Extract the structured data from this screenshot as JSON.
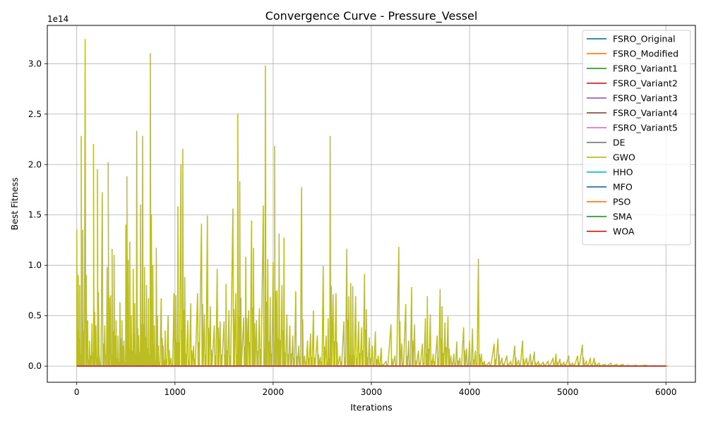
{
  "chart_data": {
    "type": "line",
    "title": "Convergence Curve - Pressure_Vessel",
    "xlabel": "Iterations",
    "ylabel": "Best Fitness",
    "y_offset_label": "1e14",
    "xlim": [
      -300,
      6300
    ],
    "ylim": [
      -16000000000000.0,
      338000000000000.0
    ],
    "x_ticks": [
      0,
      1000,
      2000,
      3000,
      4000,
      5000,
      6000
    ],
    "x_tick_labels": [
      "0",
      "1000",
      "2000",
      "3000",
      "4000",
      "5000",
      "6000"
    ],
    "y_ticks": [
      0,
      50000000000000.0,
      100000000000000.0,
      150000000000000.0,
      200000000000000.0,
      250000000000000.0,
      300000000000000.0
    ],
    "y_tick_labels": [
      "0.0",
      "0.5",
      "1.0",
      "1.5",
      "2.0",
      "2.5",
      "3.0"
    ],
    "grid": true,
    "legend_position": "top-right",
    "iterations": 6000,
    "series": [
      {
        "name": "FSRO_Original",
        "color": "#1f77b4",
        "value": 0
      },
      {
        "name": "FSRO_Modified",
        "color": "#ff7f0e",
        "value": 0
      },
      {
        "name": "FSRO_Variant1",
        "color": "#2ca02c",
        "value": 0
      },
      {
        "name": "FSRO_Variant2",
        "color": "#d62728",
        "value": 0
      },
      {
        "name": "FSRO_Variant3",
        "color": "#9467bd",
        "value": 0
      },
      {
        "name": "FSRO_Variant4",
        "color": "#8c564b",
        "value": 0
      },
      {
        "name": "FSRO_Variant5",
        "color": "#e377c2",
        "value": 0
      },
      {
        "name": "DE",
        "color": "#7f7f7f",
        "value": 0
      },
      {
        "name": "GWO",
        "color": "#bcbd22",
        "peaks": [
          [
            0,
            135000000000000.0
          ],
          [
            15,
            90000000000000.0
          ],
          [
            30,
            80000000000000.0
          ],
          [
            45,
            228000000000000.0
          ],
          [
            60,
            135000000000000.0
          ],
          [
            85,
            324000000000000.0
          ],
          [
            110,
            45000000000000.0
          ],
          [
            130,
            25000000000000.0
          ],
          [
            155,
            42000000000000.0
          ],
          [
            170,
            220000000000000.0
          ],
          [
            195,
            40000000000000.0
          ],
          [
            210,
            195000000000000.0
          ],
          [
            230,
            10000000000000.0
          ],
          [
            260,
            172000000000000.0
          ],
          [
            285,
            40000000000000.0
          ],
          [
            310,
            98000000000000.0
          ],
          [
            320,
            202000000000000.0
          ],
          [
            345,
            70000000000000.0
          ],
          [
            360,
            116000000000000.0
          ],
          [
            380,
            110000000000000.0
          ],
          [
            400,
            45000000000000.0
          ],
          [
            420,
            30000000000000.0
          ],
          [
            440,
            63000000000000.0
          ],
          [
            460,
            45000000000000.0
          ],
          [
            480,
            25000000000000.0
          ],
          [
            500,
            140000000000000.0
          ],
          [
            510,
            188000000000000.0
          ],
          [
            525,
            105000000000000.0
          ],
          [
            540,
            123000000000000.0
          ],
          [
            555,
            50000000000000.0
          ],
          [
            575,
            96000000000000.0
          ],
          [
            590,
            62000000000000.0
          ],
          [
            610,
            233000000000000.0
          ],
          [
            630,
            30000000000000.0
          ],
          [
            650,
            160000000000000.0
          ],
          [
            670,
            228000000000000.0
          ],
          [
            690,
            98000000000000.0
          ],
          [
            710,
            80000000000000.0
          ],
          [
            730,
            67000000000000.0
          ],
          [
            750,
            310000000000000.0
          ],
          [
            760,
            150000000000000.0
          ],
          [
            775,
            100000000000000.0
          ],
          [
            790,
            40000000000000.0
          ],
          [
            810,
            117000000000000.0
          ],
          [
            830,
            20000000000000.0
          ],
          [
            860,
            67000000000000.0
          ],
          [
            880,
            20000000000000.0
          ],
          [
            900,
            35000000000000.0
          ],
          [
            930,
            50000000000000.0
          ],
          [
            960,
            8000000000000.0
          ],
          [
            990,
            72000000000000.0
          ],
          [
            1010,
            70000000000000.0
          ],
          [
            1030,
            158000000000000.0
          ],
          [
            1060,
            200000000000000.0
          ],
          [
            1080,
            215000000000000.0
          ],
          [
            1100,
            88000000000000.0
          ],
          [
            1130,
            45000000000000.0
          ],
          [
            1160,
            62000000000000.0
          ],
          [
            1190,
            20000000000000.0
          ],
          [
            1230,
            72000000000000.0
          ],
          [
            1270,
            141000000000000.0
          ],
          [
            1300,
            51000000000000.0
          ],
          [
            1330,
            149000000000000.0
          ],
          [
            1360,
            59000000000000.0
          ],
          [
            1400,
            40000000000000.0
          ],
          [
            1430,
            96000000000000.0
          ],
          [
            1460,
            44000000000000.0
          ],
          [
            1500,
            44000000000000.0
          ],
          [
            1520,
            81000000000000.0
          ],
          [
            1550,
            55000000000000.0
          ],
          [
            1590,
            156000000000000.0
          ],
          [
            1620,
            72000000000000.0
          ],
          [
            1640,
            250000000000000.0
          ],
          [
            1660,
            183000000000000.0
          ],
          [
            1700,
            48000000000000.0
          ],
          [
            1720,
            108000000000000.0
          ],
          [
            1750,
            55000000000000.0
          ],
          [
            1780,
            144000000000000.0
          ],
          [
            1800,
            117000000000000.0
          ],
          [
            1830,
            45000000000000.0
          ],
          [
            1860,
            57000000000000.0
          ],
          [
            1900,
            159000000000000.0
          ],
          [
            1920,
            298000000000000.0
          ],
          [
            1945,
            106000000000000.0
          ],
          [
            1970,
            68000000000000.0
          ],
          [
            2000,
            103000000000000.0
          ],
          [
            2015,
            218000000000000.0
          ],
          [
            2040,
            75000000000000.0
          ],
          [
            2060,
            131000000000000.0
          ],
          [
            2090,
            80000000000000.0
          ],
          [
            2110,
            127000000000000.0
          ],
          [
            2140,
            51000000000000.0
          ],
          [
            2170,
            40000000000000.0
          ],
          [
            2200,
            30000000000000.0
          ],
          [
            2230,
            74000000000000.0
          ],
          [
            2260,
            20000000000000.0
          ],
          [
            2290,
            177000000000000.0
          ],
          [
            2320,
            10000000000000.0
          ],
          [
            2350,
            25000000000000.0
          ],
          [
            2380,
            32000000000000.0
          ],
          [
            2410,
            55000000000000.0
          ],
          [
            2450,
            30000000000000.0
          ],
          [
            2480,
            9000000000000.0
          ],
          [
            2510,
            99000000000000.0
          ],
          [
            2540,
            30000000000000.0
          ],
          [
            2560,
            47000000000000.0
          ],
          [
            2580,
            228000000000000.0
          ],
          [
            2610,
            71000000000000.0
          ],
          [
            2640,
            72000000000000.0
          ],
          [
            2680,
            10000000000000.0
          ],
          [
            2720,
            44000000000000.0
          ],
          [
            2750,
            116000000000000.0
          ],
          [
            2770,
            69000000000000.0
          ],
          [
            2790,
            82000000000000.0
          ],
          [
            2810,
            79000000000000.0
          ],
          [
            2840,
            69000000000000.0
          ],
          [
            2870,
            44000000000000.0
          ],
          [
            2900,
            38000000000000.0
          ],
          [
            2930,
            91000000000000.0
          ],
          [
            2950,
            56000000000000.0
          ],
          [
            2980,
            28000000000000.0
          ],
          [
            3010,
            20000000000000.0
          ],
          [
            3040,
            34000000000000.0
          ],
          [
            3070,
            10000000000000.0
          ],
          [
            3100,
            18000000000000.0
          ],
          [
            3150,
            5000000000000.0
          ],
          [
            3200,
            41000000000000.0
          ],
          [
            3240,
            10000000000000.0
          ],
          [
            3280,
            118000000000000.0
          ],
          [
            3310,
            22000000000000.0
          ],
          [
            3350,
            61000000000000.0
          ],
          [
            3380,
            25000000000000.0
          ],
          [
            3410,
            78000000000000.0
          ],
          [
            3440,
            41000000000000.0
          ],
          [
            3480,
            15000000000000.0
          ],
          [
            3520,
            22000000000000.0
          ],
          [
            3550,
            47000000000000.0
          ],
          [
            3570,
            69000000000000.0
          ],
          [
            3600,
            51000000000000.0
          ],
          [
            3630,
            12000000000000.0
          ],
          [
            3670,
            30000000000000.0
          ],
          [
            3700,
            76000000000000.0
          ],
          [
            3720,
            59000000000000.0
          ],
          [
            3750,
            43000000000000.0
          ],
          [
            3780,
            49000000000000.0
          ],
          [
            3810,
            10000000000000.0
          ],
          [
            3840,
            12000000000000.0
          ],
          [
            3870,
            24000000000000.0
          ],
          [
            3900,
            8000000000000.0
          ],
          [
            3940,
            38000000000000.0
          ],
          [
            3970,
            17000000000000.0
          ],
          [
            4000,
            25000000000000.0
          ],
          [
            4030,
            37000000000000.0
          ],
          [
            4060,
            15000000000000.0
          ],
          [
            4090,
            106000000000000.0
          ],
          [
            4120,
            12000000000000.0
          ],
          [
            4150,
            5000000000000.0
          ],
          [
            4200,
            4000000000000.0
          ],
          [
            4250,
            22000000000000.0
          ],
          [
            4290,
            27000000000000.0
          ],
          [
            4330,
            8000000000000.0
          ],
          [
            4380,
            10000000000000.0
          ],
          [
            4420,
            5000000000000.0
          ],
          [
            4460,
            20000000000000.0
          ],
          [
            4500,
            6000000000000.0
          ],
          [
            4540,
            25000000000000.0
          ],
          [
            4580,
            8000000000000.0
          ],
          [
            4620,
            12000000000000.0
          ],
          [
            4660,
            14000000000000.0
          ],
          [
            4700,
            5000000000000.0
          ],
          [
            4750,
            4000000000000.0
          ],
          [
            4800,
            5000000000000.0
          ],
          [
            4850,
            8000000000000.0
          ],
          [
            4880,
            12000000000000.0
          ],
          [
            4920,
            7000000000000.0
          ],
          [
            4960,
            4000000000000.0
          ],
          [
            5010,
            10000000000000.0
          ],
          [
            5050,
            3000000000000.0
          ],
          [
            5100,
            10000000000000.0
          ],
          [
            5150,
            21000000000000.0
          ],
          [
            5190,
            5000000000000.0
          ],
          [
            5230,
            8000000000000.0
          ],
          [
            5270,
            8000000000000.0
          ],
          [
            5320,
            3000000000000.0
          ],
          [
            5380,
            2000000000000.0
          ],
          [
            5440,
            3000000000000.0
          ],
          [
            5500,
            2000000000000.0
          ],
          [
            5560,
            2000000000000.0
          ],
          [
            5620,
            1000000000000.0
          ],
          [
            5700,
            1000000000000.0
          ],
          [
            5800,
            1000000000000.0
          ],
          [
            5900,
            500000000000.0
          ],
          [
            6000,
            500000000000.0
          ]
        ]
      },
      {
        "name": "HHO",
        "color": "#17becf",
        "value": 0
      },
      {
        "name": "MFO",
        "color": "#1f77b4",
        "value": 0
      },
      {
        "name": "PSO",
        "color": "#ff7f0e",
        "value": 0
      },
      {
        "name": "SMA",
        "color": "#2ca02c",
        "value": 0
      },
      {
        "name": "WOA",
        "color": "#d62728",
        "value": 0
      }
    ]
  }
}
